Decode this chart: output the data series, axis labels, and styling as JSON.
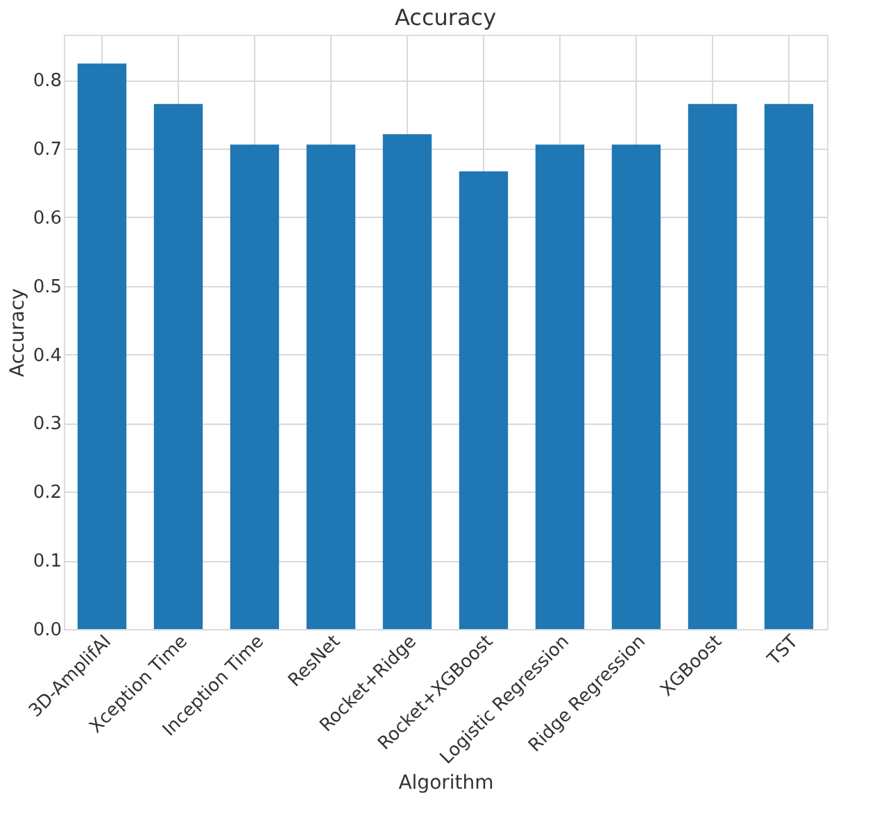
{
  "chart_data": {
    "type": "bar",
    "title": "Accuracy",
    "xlabel": "Algorithm",
    "ylabel": "Accuracy",
    "categories": [
      "3D-AmplifAI",
      "Xception Time",
      "Inception Time",
      "ResNet",
      "Rocket+Ridge",
      "Rocket+XGBoost",
      "Logistic Regression",
      "Ridge Regression",
      "XGBoost",
      "TST"
    ],
    "values": [
      0.824,
      0.765,
      0.706,
      0.706,
      0.721,
      0.667,
      0.706,
      0.706,
      0.765,
      0.765
    ],
    "color": "#1f77b4",
    "ylim": [
      0,
      0.866
    ],
    "yticks": [
      {
        "value": 0,
        "label": "0.0"
      },
      0.1,
      0.2,
      0.3,
      0.4,
      0.5,
      0.6,
      0.7,
      0.8
    ],
    "grid": true
  }
}
